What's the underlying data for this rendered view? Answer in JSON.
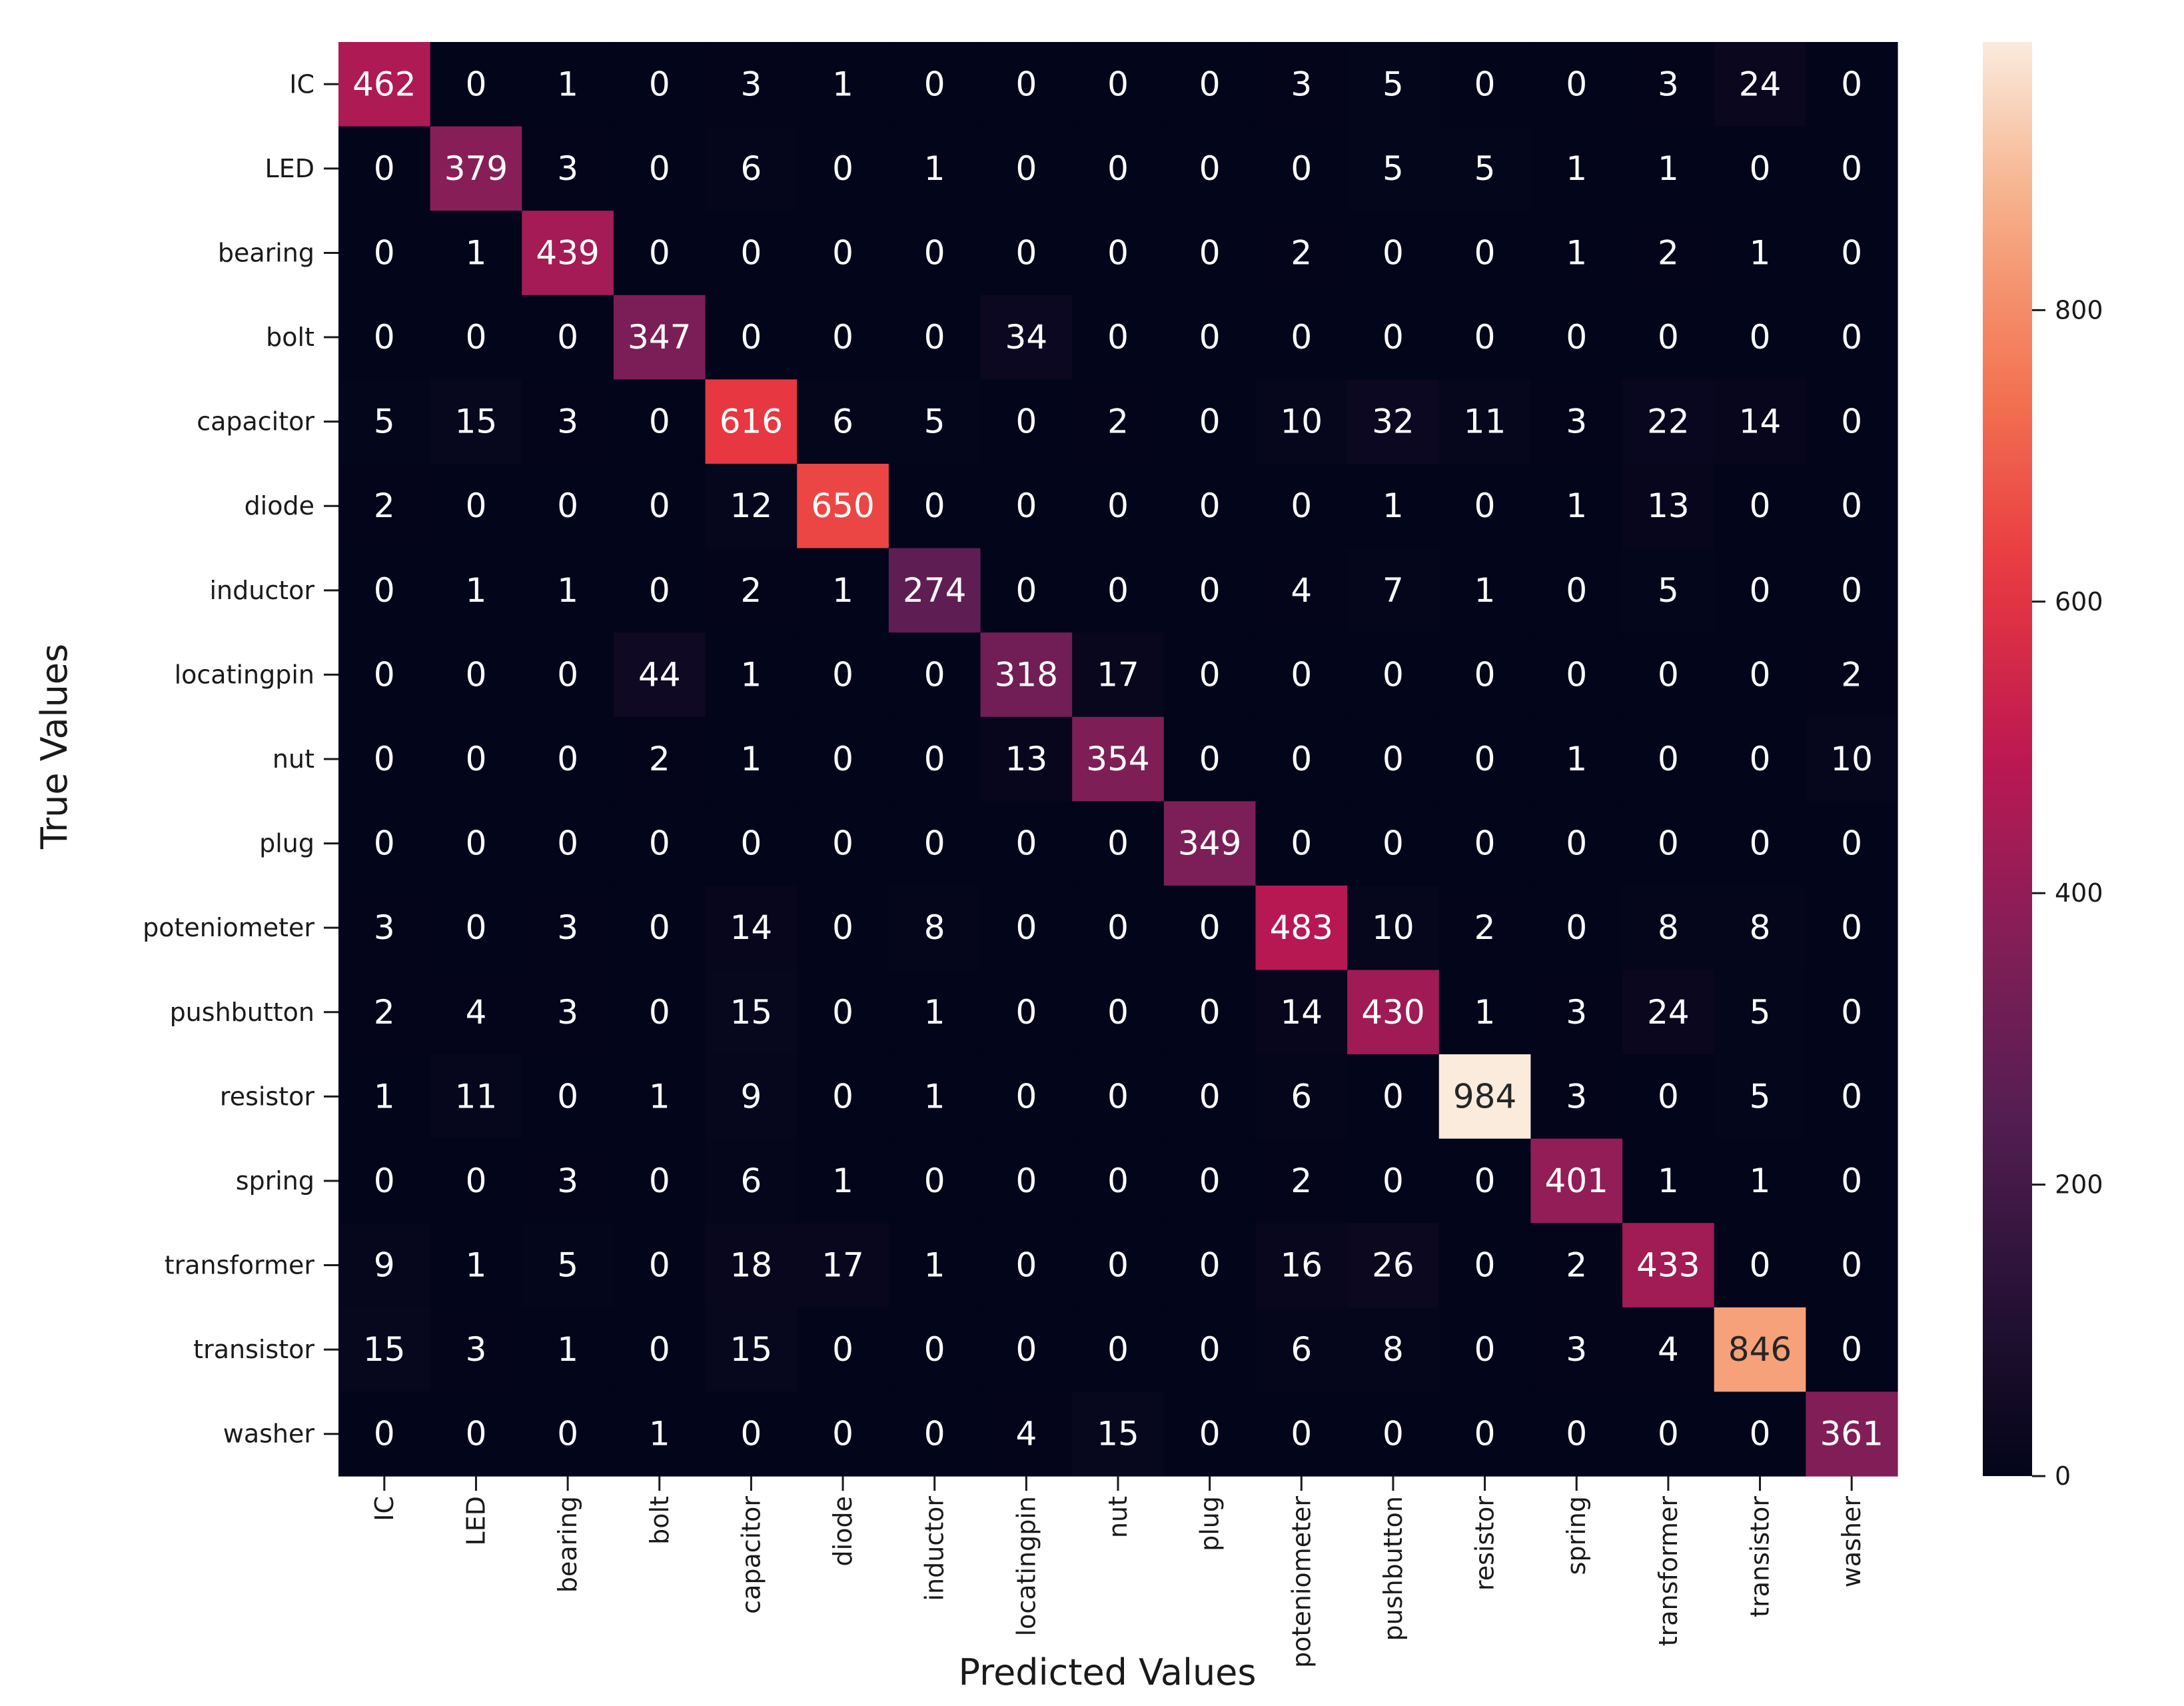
{
  "chart_data": {
    "type": "heatmap",
    "title": "",
    "xlabel": "Predicted Values",
    "ylabel": "True Values",
    "rows": [
      "IC",
      "LED",
      "bearing",
      "bolt",
      "capacitor",
      "diode",
      "inductor",
      "locatingpin",
      "nut",
      "plug",
      "poteniometer",
      "pushbutton",
      "resistor",
      "spring",
      "transformer",
      "transistor",
      "washer"
    ],
    "columns": [
      "IC",
      "LED",
      "bearing",
      "bolt",
      "capacitor",
      "diode",
      "inductor",
      "locatingpin",
      "nut",
      "plug",
      "poteniometer",
      "pushbutton",
      "resistor",
      "spring",
      "transformer",
      "transistor",
      "washer"
    ],
    "values": [
      [
        462,
        0,
        1,
        0,
        3,
        1,
        0,
        0,
        0,
        0,
        3,
        5,
        0,
        0,
        3,
        24,
        0
      ],
      [
        0,
        379,
        3,
        0,
        6,
        0,
        1,
        0,
        0,
        0,
        0,
        5,
        5,
        1,
        1,
        0,
        0
      ],
      [
        0,
        1,
        439,
        0,
        0,
        0,
        0,
        0,
        0,
        0,
        2,
        0,
        0,
        1,
        2,
        1,
        0
      ],
      [
        0,
        0,
        0,
        347,
        0,
        0,
        0,
        34,
        0,
        0,
        0,
        0,
        0,
        0,
        0,
        0,
        0
      ],
      [
        5,
        15,
        3,
        0,
        616,
        6,
        5,
        0,
        2,
        0,
        10,
        32,
        11,
        3,
        22,
        14,
        0
      ],
      [
        2,
        0,
        0,
        0,
        12,
        650,
        0,
        0,
        0,
        0,
        0,
        1,
        0,
        1,
        13,
        0,
        0
      ],
      [
        0,
        1,
        1,
        0,
        2,
        1,
        274,
        0,
        0,
        0,
        4,
        7,
        1,
        0,
        5,
        0,
        0
      ],
      [
        0,
        0,
        0,
        44,
        1,
        0,
        0,
        318,
        17,
        0,
        0,
        0,
        0,
        0,
        0,
        0,
        2
      ],
      [
        0,
        0,
        0,
        2,
        1,
        0,
        0,
        13,
        354,
        0,
        0,
        0,
        0,
        1,
        0,
        0,
        10
      ],
      [
        0,
        0,
        0,
        0,
        0,
        0,
        0,
        0,
        0,
        349,
        0,
        0,
        0,
        0,
        0,
        0,
        0
      ],
      [
        3,
        0,
        3,
        0,
        14,
        0,
        8,
        0,
        0,
        0,
        483,
        10,
        2,
        0,
        8,
        8,
        0
      ],
      [
        2,
        4,
        3,
        0,
        15,
        0,
        1,
        0,
        0,
        0,
        14,
        430,
        1,
        3,
        24,
        5,
        0
      ],
      [
        1,
        11,
        0,
        1,
        9,
        0,
        1,
        0,
        0,
        0,
        6,
        0,
        984,
        3,
        0,
        5,
        0
      ],
      [
        0,
        0,
        3,
        0,
        6,
        1,
        0,
        0,
        0,
        0,
        2,
        0,
        0,
        401,
        1,
        1,
        0
      ],
      [
        9,
        1,
        5,
        0,
        18,
        17,
        1,
        0,
        0,
        0,
        16,
        26,
        0,
        2,
        433,
        0,
        0
      ],
      [
        15,
        3,
        1,
        0,
        15,
        0,
        0,
        0,
        0,
        0,
        6,
        8,
        0,
        3,
        4,
        846,
        0
      ],
      [
        0,
        0,
        0,
        1,
        0,
        0,
        0,
        4,
        15,
        0,
        0,
        0,
        0,
        0,
        0,
        0,
        361
      ]
    ],
    "vmin": 0,
    "vmax": 984,
    "colorbar_ticks": [
      0,
      200,
      400,
      600,
      800
    ],
    "colormap": "rocket"
  }
}
